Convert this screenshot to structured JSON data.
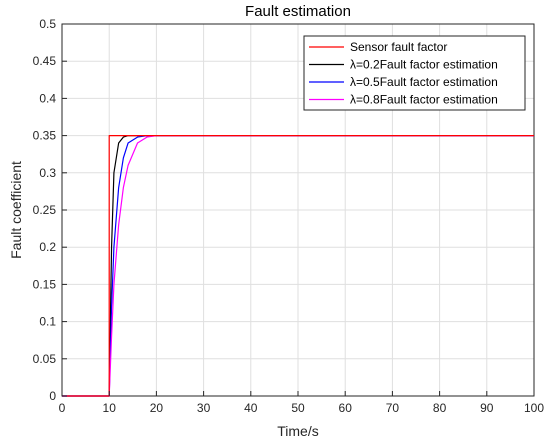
{
  "chart_data": {
    "type": "line",
    "title": "Fault estimation",
    "xlabel": "Time/s",
    "ylabel": "Fault coefficient",
    "xlim": [
      0,
      100
    ],
    "ylim": [
      0,
      0.5
    ],
    "xticks": [
      0,
      10,
      20,
      30,
      40,
      50,
      60,
      70,
      80,
      90,
      100
    ],
    "yticks": [
      0,
      0.05,
      0.1,
      0.15,
      0.2,
      0.25,
      0.3,
      0.35,
      0.4,
      0.45,
      0.5
    ],
    "grid": true,
    "legend_position": "top-right",
    "series": [
      {
        "name": "Sensor fault factor",
        "color": "#ff0000",
        "x": [
          0,
          10,
          10,
          100
        ],
        "y": [
          0,
          0,
          0.35,
          0.35
        ]
      },
      {
        "name": "λ=0.2Fault factor estimation",
        "color": "#000000",
        "x": [
          0,
          10,
          10.5,
          11,
          12,
          13,
          14,
          15,
          100
        ],
        "y": [
          0,
          0,
          0.2,
          0.3,
          0.34,
          0.348,
          0.35,
          0.35,
          0.35
        ]
      },
      {
        "name": "λ=0.5Fault factor estimation",
        "color": "#0000ff",
        "x": [
          0,
          10,
          10.5,
          11,
          12,
          13,
          14,
          16,
          18,
          100
        ],
        "y": [
          0,
          0,
          0.12,
          0.2,
          0.28,
          0.32,
          0.34,
          0.348,
          0.35,
          0.35
        ]
      },
      {
        "name": "λ=0.8Fault factor estimation",
        "color": "#ff00ff",
        "x": [
          0,
          10,
          10.5,
          11,
          12,
          13,
          14,
          16,
          18,
          20,
          100
        ],
        "y": [
          0,
          0,
          0.08,
          0.15,
          0.23,
          0.28,
          0.31,
          0.34,
          0.348,
          0.35,
          0.35
        ]
      }
    ]
  }
}
